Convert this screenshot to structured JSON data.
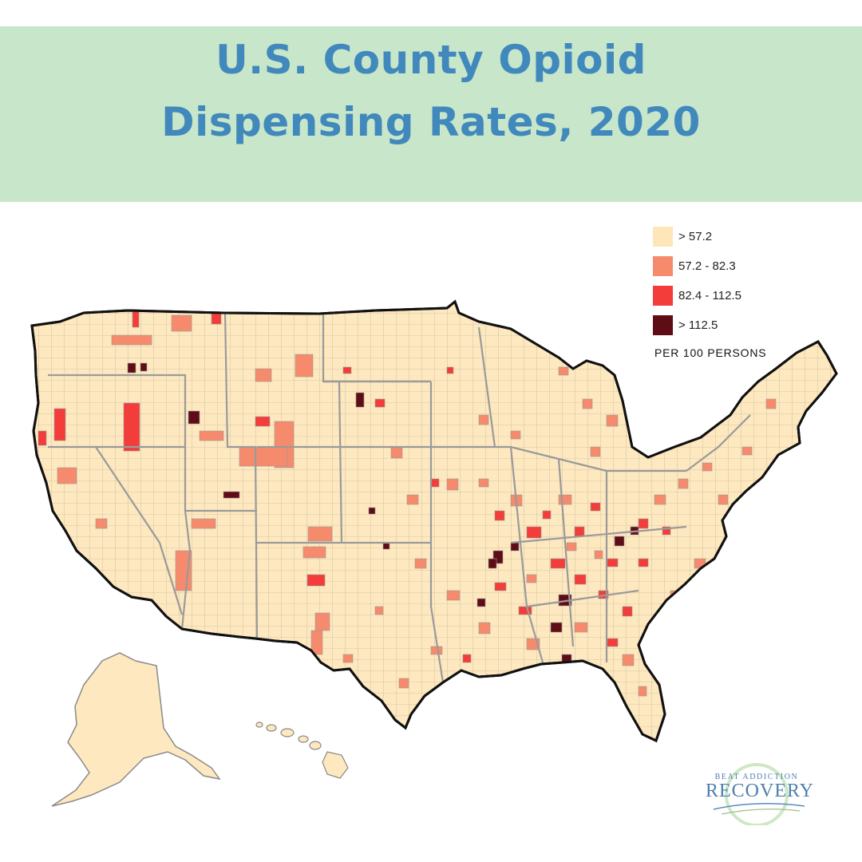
{
  "title": {
    "line1": "U.S. County Opioid",
    "line2": "Dispensing Rates, 2020"
  },
  "colors": {
    "header_bg": "#c8e6c9",
    "title": "#4189bd",
    "land": "#fde8bf",
    "border": "#9a9a9a",
    "outline": "#111111"
  },
  "legend": {
    "items": [
      {
        "label": "> 57.2",
        "color": "#fde6b8"
      },
      {
        "label": "57.2 - 82.3",
        "color": "#f58b6c"
      },
      {
        "label": "82.4 - 112.5",
        "color": "#f23d3b"
      },
      {
        "label": "> 112.5",
        "color": "#5e0d17"
      }
    ],
    "unit": "PER 100 PERSONS"
  },
  "logo": {
    "top_text": "BEAT ADDICTION",
    "main_text": "RECOVERY"
  }
}
